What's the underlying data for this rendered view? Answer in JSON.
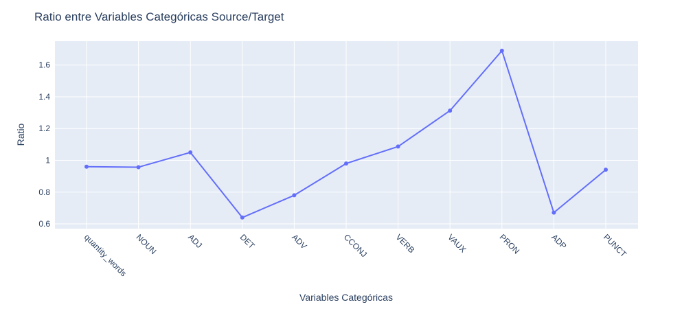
{
  "chart_data": {
    "type": "line",
    "title": "Ratio entre Variables Categóricas Source/Target",
    "xlabel": "Variables Categóricas",
    "ylabel": "Ratio",
    "categories": [
      "quantity_words",
      "NOUN",
      "ADJ",
      "DET",
      "ADV",
      "CCONJ",
      "VERB",
      "VAUX",
      "PRON",
      "ADP",
      "PUNCT"
    ],
    "series": [
      {
        "values": [
          0.96,
          0.957,
          1.05,
          0.64,
          0.78,
          0.98,
          1.087,
          1.313,
          1.69,
          0.671,
          0.941
        ]
      }
    ],
    "ylim": [
      0.57,
      1.75
    ],
    "yticks": [
      0.6,
      0.8,
      1.0,
      1.2,
      1.4,
      1.6
    ],
    "ytick_labels": [
      "0.6",
      "0.8",
      "1",
      "1.2",
      "1.4",
      "1.6"
    ],
    "grid": true,
    "colors": {
      "plot_bg": "#e5ecf6",
      "line": "#636efa",
      "text": "#2a3f5f",
      "grid": "#ffffff"
    }
  }
}
